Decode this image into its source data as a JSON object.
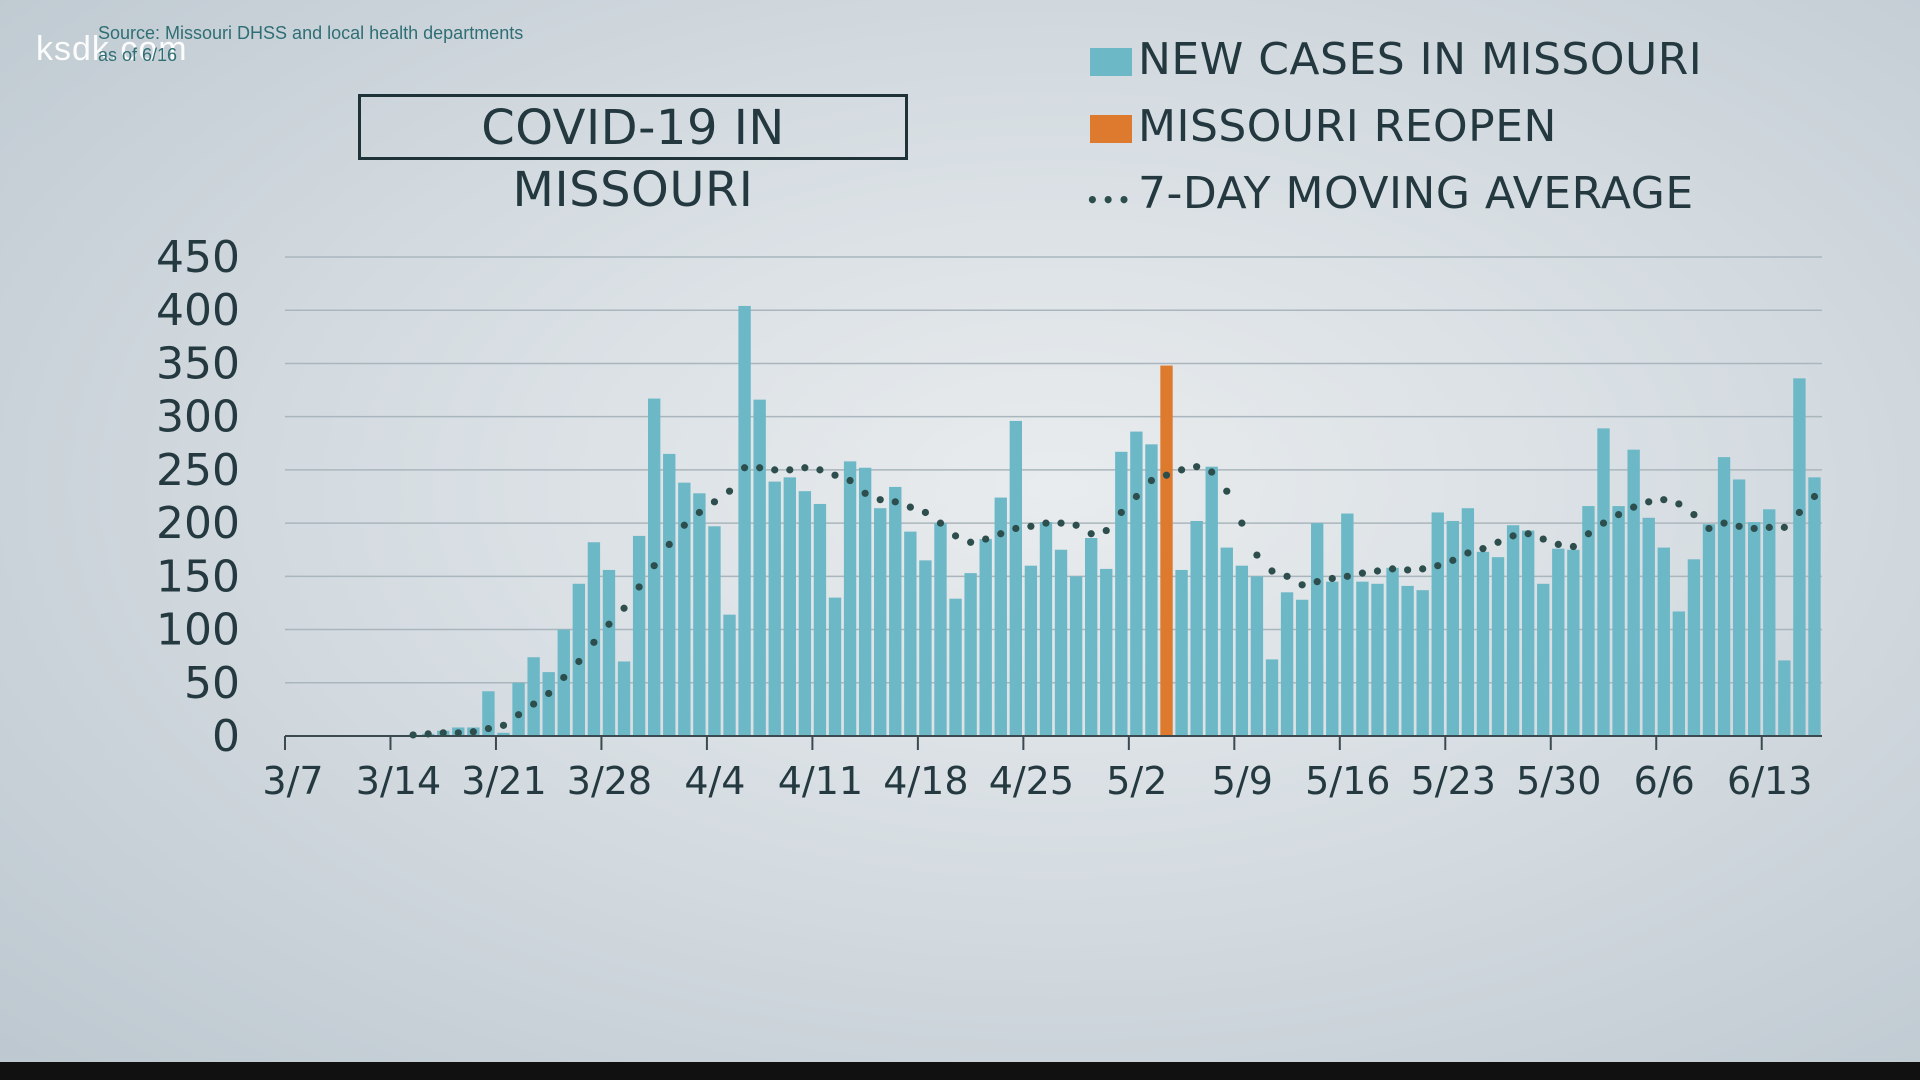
{
  "brand": {
    "logo": "ksdk.com"
  },
  "source": {
    "line1": "Source: Missouri DHSS and local health departments",
    "line2": "as of 6/16"
  },
  "colors": {
    "cases": "#6cb8c7",
    "reopen": "#dd7a2e",
    "average": "#2d4e4d",
    "gridline": "#aab6bd",
    "axis": "#3a4a50"
  },
  "chart_data": {
    "type": "bar",
    "title": "COVID-19 IN MISSOURI",
    "xlabel": "",
    "ylabel": "",
    "ylim": [
      0,
      450
    ],
    "yticks": [
      0,
      50,
      100,
      150,
      200,
      250,
      300,
      350,
      400,
      450
    ],
    "xtick_labels": [
      "3/7",
      "3/14",
      "3/21",
      "3/28",
      "4/4",
      "4/11",
      "4/18",
      "4/25",
      "5/2",
      "5/9",
      "5/16",
      "5/23",
      "5/30",
      "6/6",
      "6/13"
    ],
    "start_date": "3/7",
    "legend": [
      {
        "label": "NEW CASES IN MISSOURI",
        "kind": "bar",
        "color": "#6cb8c7"
      },
      {
        "label": "MISSOURI REOPEN",
        "kind": "bar",
        "color": "#dd7a2e"
      },
      {
        "label": "7-DAY MOVING AVERAGE",
        "kind": "dots",
        "color": "#2d4e4d"
      }
    ],
    "highlight_index": 58,
    "series": [
      {
        "name": "NEW CASES IN MISSOURI",
        "type": "bar",
        "values": [
          0,
          0,
          0,
          0,
          0,
          0,
          0,
          0,
          1,
          2,
          5,
          8,
          8,
          42,
          3,
          50,
          74,
          60,
          100,
          143,
          182,
          156,
          70,
          188,
          317,
          265,
          238,
          228,
          197,
          114,
          404,
          316,
          239,
          243,
          230,
          218,
          130,
          258,
          252,
          214,
          234,
          192,
          165,
          200,
          129,
          153,
          185,
          224,
          296,
          160,
          201,
          175,
          150,
          186,
          157,
          267,
          286,
          274,
          348,
          156,
          202,
          253,
          177,
          160,
          150,
          72,
          135,
          128,
          200,
          145,
          209,
          145,
          143,
          158,
          141,
          137,
          210,
          202,
          214,
          173,
          168,
          198,
          193,
          143,
          176,
          175,
          216,
          289,
          216,
          269,
          205,
          177,
          117,
          166,
          199,
          262,
          241,
          201,
          213,
          71,
          336,
          243
        ]
      },
      {
        "name": "7-DAY MOVING AVERAGE",
        "type": "line",
        "style": "dotted",
        "values": [
          null,
          null,
          null,
          null,
          null,
          null,
          null,
          null,
          1,
          2,
          3,
          3,
          4,
          7,
          10,
          20,
          30,
          40,
          55,
          70,
          88,
          105,
          120,
          140,
          160,
          180,
          198,
          210,
          220,
          230,
          252,
          252,
          250,
          250,
          252,
          250,
          245,
          240,
          228,
          222,
          220,
          215,
          210,
          200,
          188,
          182,
          185,
          190,
          195,
          197,
          200,
          200,
          198,
          190,
          193,
          210,
          225,
          240,
          245,
          250,
          253,
          248,
          230,
          200,
          170,
          155,
          150,
          142,
          145,
          148,
          150,
          153,
          155,
          157,
          156,
          157,
          160,
          165,
          172,
          176,
          182,
          188,
          190,
          185,
          180,
          178,
          190,
          200,
          208,
          215,
          220,
          222,
          218,
          208,
          195,
          200,
          197,
          195,
          196,
          196,
          210,
          225
        ]
      }
    ]
  }
}
